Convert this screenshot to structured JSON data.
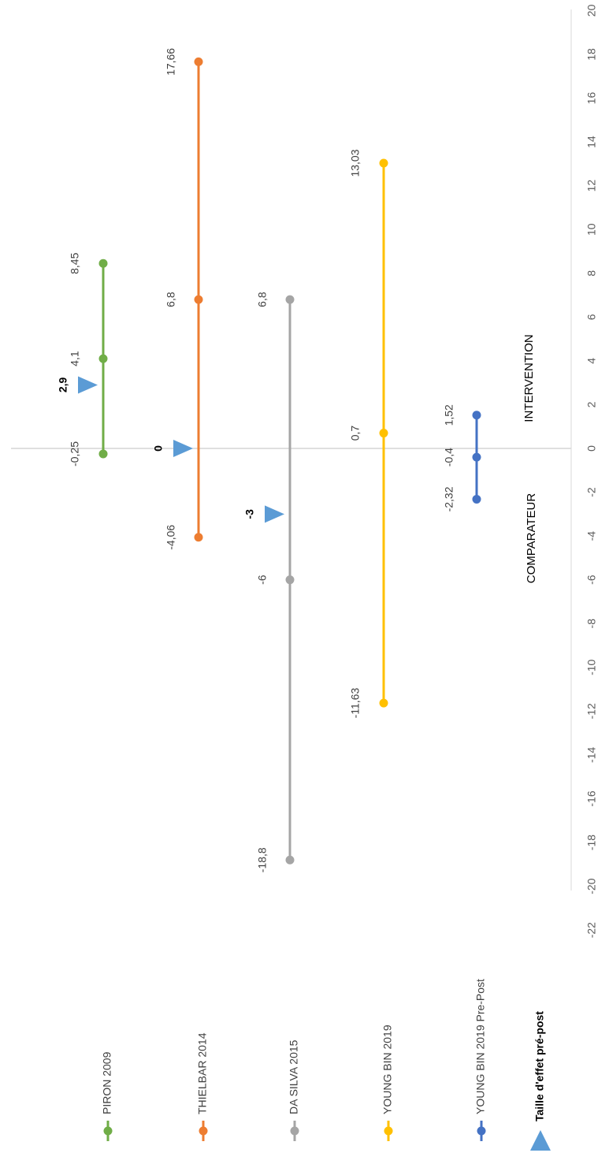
{
  "chart_data": {
    "type": "line",
    "orientation": "rotated-90-clockwise",
    "axis": {
      "min": -22,
      "max": 20,
      "step": 2,
      "ticks": [
        "-22",
        "-20",
        "-18",
        "-16",
        "-14",
        "-12",
        "-10",
        "-8",
        "-6",
        "-4",
        "-2",
        "0",
        "2",
        "4",
        "6",
        "8",
        "10",
        "12",
        "14",
        "16",
        "18",
        "20"
      ]
    },
    "series": [
      {
        "name": "PIRON 2009",
        "color": "#70ad47",
        "values": [
          -0.25,
          4.1,
          8.45
        ],
        "labels": [
          "-0,25",
          "4,1",
          "8,45"
        ]
      },
      {
        "name": "THIELBAR 2014",
        "color": "#ed7d31",
        "values": [
          -4.06,
          6.8,
          17.66
        ],
        "labels": [
          "-4,06",
          "6,8",
          "17,66"
        ]
      },
      {
        "name": "DA SILVA 2015",
        "color": "#a5a5a5",
        "values": [
          -18.8,
          -6,
          6.8
        ],
        "labels": [
          "-18,8",
          "-6",
          "6,8"
        ]
      },
      {
        "name": "YOUNG BIN 2019",
        "color": "#ffc000",
        "values": [
          -11.63,
          0.7,
          13.03
        ],
        "labels": [
          "-11,63",
          "0,7",
          "13,03"
        ]
      },
      {
        "name": "YOUNG BIN 2019 Pre-Post",
        "color": "#4472c4",
        "values": [
          -2.32,
          -0.4,
          1.52
        ],
        "labels": [
          "-2,32",
          "-0,4",
          "1,52"
        ]
      }
    ],
    "effect_sizes": {
      "name": "Taille d'effet pré-post",
      "color": "#5b9bd5",
      "points": [
        {
          "study": "PIRON 2009",
          "value": 2.9,
          "label": "2,9"
        },
        {
          "study": "THIELBAR 2014",
          "value": 0,
          "label": "0"
        },
        {
          "study": "DA SILVA 2015",
          "value": -3,
          "label": "-3"
        }
      ]
    },
    "zone_labels": {
      "positive": "INTERVENTION",
      "negative": "COMPARATEUR"
    },
    "legend": {
      "position": "bottom"
    }
  }
}
